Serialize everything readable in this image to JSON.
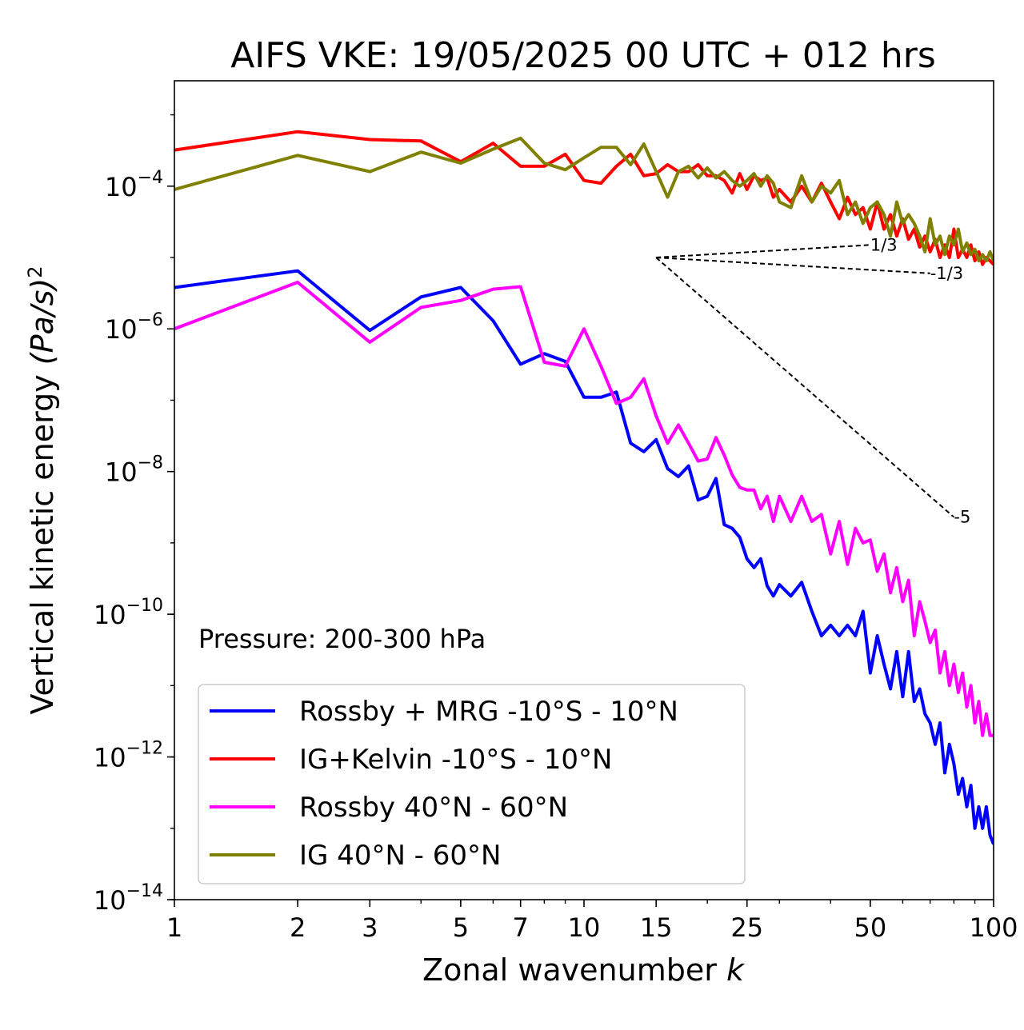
{
  "chart_data": {
    "type": "line",
    "title": "AIFS VKE: 19/05/2025 00 UTC + 012 hrs",
    "xlabel": "Zonal wavenumber",
    "xlabel_var": "k",
    "ylabel": "Vertical kinetic energy",
    "ylabel_unit": "(Pa/s)",
    "ylabel_unit_exp": "2",
    "xscale": "log",
    "yscale": "log",
    "xlim": [
      1,
      100
    ],
    "ylim": [
      1e-14,
      0.003
    ],
    "x_ticks": [
      1,
      2,
      3,
      5,
      7,
      10,
      15,
      25,
      50,
      100
    ],
    "x_tick_labels": [
      "1",
      "2",
      "3",
      "5",
      "7",
      "10",
      "15",
      "25",
      "50",
      "100"
    ],
    "y_ticks": [
      1e-14,
      1e-12,
      1e-10,
      1e-08,
      1e-06,
      0.0001
    ],
    "y_tick_labels": [
      {
        "base": "10",
        "exp": "−14"
      },
      {
        "base": "10",
        "exp": "−12"
      },
      {
        "base": "10",
        "exp": "−10"
      },
      {
        "base": "10",
        "exp": "−8"
      },
      {
        "base": "10",
        "exp": "−6"
      },
      {
        "base": "10",
        "exp": "−4"
      }
    ],
    "annotation": "Pressure: 200-300 hPa",
    "legend_position": "lower-left",
    "series": [
      {
        "name": "Rossby + MRG -10°S - 10°N",
        "color": "#0000ff",
        "x": [
          1,
          2,
          3,
          4,
          5,
          6,
          7,
          8,
          9,
          10,
          11,
          12,
          13,
          14,
          15,
          16,
          17,
          18,
          19,
          20,
          21,
          22,
          23,
          24,
          25,
          26,
          27,
          28,
          29,
          30,
          32,
          34,
          36,
          38,
          40,
          42,
          44,
          46,
          48,
          50,
          52,
          54,
          56,
          58,
          60,
          62,
          64,
          66,
          68,
          70,
          72,
          74,
          76,
          78,
          80,
          82,
          84,
          86,
          88,
          90,
          92,
          94,
          96,
          98,
          100
        ],
        "y": [
          3.8e-06,
          6.5e-06,
          9.5e-07,
          2.8e-06,
          3.8e-06,
          1.3e-06,
          3.2e-07,
          4.5e-07,
          3.5e-07,
          1.1e-07,
          1.1e-07,
          1.3e-07,
          2.5e-08,
          1.9e-08,
          2.8e-08,
          1.1e-08,
          8.5e-09,
          1.2e-08,
          4e-09,
          4.5e-09,
          8e-09,
          1.8e-09,
          1.6e-09,
          1.2e-09,
          6e-10,
          4.5e-10,
          6e-10,
          2.5e-10,
          1.8e-10,
          2.6e-10,
          1.8e-10,
          2.8e-10,
          1.1e-10,
          5e-11,
          7e-11,
          5e-11,
          7e-11,
          5e-11,
          1.1e-10,
          1.5e-11,
          5e-11,
          2e-11,
          9e-12,
          3e-11,
          7e-12,
          3e-11,
          6e-12,
          9e-12,
          4e-12,
          3e-12,
          1.5e-12,
          3e-12,
          6e-13,
          1.5e-12,
          8e-13,
          3e-13,
          5e-13,
          2e-13,
          4e-13,
          1e-13,
          2e-13,
          1e-13,
          2e-13,
          8e-14,
          6e-14
        ]
      },
      {
        "name": "IG+Kelvin -10°S - 10°N",
        "color": "#ff0000",
        "x": [
          1,
          2,
          3,
          4,
          5,
          6,
          7,
          8,
          9,
          10,
          11,
          12,
          13,
          14,
          15,
          16,
          17,
          18,
          19,
          20,
          21,
          22,
          23,
          24,
          25,
          26,
          27,
          28,
          29,
          30,
          32,
          34,
          36,
          38,
          40,
          42,
          44,
          46,
          48,
          50,
          52,
          54,
          56,
          58,
          60,
          62,
          64,
          66,
          68,
          70,
          72,
          74,
          76,
          78,
          80,
          82,
          84,
          86,
          88,
          90,
          92,
          94,
          96,
          98,
          100
        ],
        "y": [
          0.00032,
          0.00058,
          0.00045,
          0.00043,
          0.00022,
          0.0004,
          0.00019,
          0.00019,
          0.00028,
          0.00012,
          0.00011,
          0.00019,
          0.00028,
          0.00014,
          0.00015,
          0.0002,
          0.00016,
          0.00016,
          0.0002,
          0.00014,
          0.00014,
          0.00012,
          8e-05,
          0.00015,
          9e-05,
          0.00014,
          0.00012,
          0.00013,
          7e-05,
          9e-05,
          6e-05,
          0.0001,
          6e-05,
          0.00011,
          6e-05,
          3.5e-05,
          7e-05,
          4e-05,
          5e-05,
          2.5e-05,
          6e-05,
          2.5e-05,
          4e-05,
          2e-05,
          3.5e-05,
          1.8e-05,
          2.5e-05,
          1.4e-05,
          2e-05,
          1.2e-05,
          1.8e-05,
          1e-05,
          1.5e-05,
          1e-05,
          2.5e-05,
          1e-05,
          1.3e-05,
          1e-05,
          1.5e-05,
          9e-06,
          1.2e-05,
          8e-06,
          1e-05,
          9e-06,
          8e-06
        ]
      },
      {
        "name": "Rossby 40°N - 60°N",
        "color": "#ff00ff",
        "x": [
          1,
          2,
          3,
          4,
          5,
          6,
          7,
          8,
          9,
          10,
          11,
          12,
          13,
          14,
          15,
          16,
          17,
          18,
          19,
          20,
          21,
          22,
          23,
          24,
          25,
          26,
          27,
          28,
          29,
          30,
          32,
          34,
          36,
          38,
          40,
          42,
          44,
          46,
          48,
          50,
          52,
          54,
          56,
          58,
          60,
          62,
          64,
          66,
          68,
          70,
          72,
          74,
          76,
          78,
          80,
          82,
          84,
          86,
          88,
          90,
          92,
          94,
          96,
          98,
          100
        ],
        "y": [
          1e-06,
          4.5e-06,
          6.5e-07,
          2e-06,
          2.5e-06,
          3.6e-06,
          3.9e-06,
          3.4e-07,
          3e-07,
          1e-06,
          3e-07,
          9e-08,
          1.1e-07,
          2e-07,
          6e-08,
          2.5e-08,
          4.5e-08,
          2.5e-08,
          1.4e-08,
          1.5e-08,
          3e-08,
          1.7e-08,
          9e-09,
          6e-09,
          5.5e-09,
          5.5e-09,
          3e-09,
          4.5e-09,
          2e-09,
          4.5e-09,
          2e-09,
          4.5e-09,
          2e-09,
          2.5e-09,
          7e-10,
          2e-09,
          5e-10,
          1.6e-09,
          1e-09,
          1.1e-09,
          4e-10,
          7e-10,
          2e-10,
          4.5e-10,
          1.5e-10,
          3e-10,
          5e-11,
          1.5e-10,
          8e-11,
          4e-11,
          6e-11,
          1.5e-11,
          3e-11,
          1e-11,
          2e-11,
          8e-12,
          1.5e-11,
          5e-12,
          1e-11,
          3e-12,
          6e-12,
          2e-12,
          4e-12,
          2e-12,
          2e-12
        ]
      },
      {
        "name": "IG 40°N - 60°N",
        "color": "#808000",
        "x": [
          1,
          2,
          3,
          4,
          5,
          6,
          7,
          8,
          9,
          10,
          11,
          12,
          13,
          14,
          15,
          16,
          17,
          18,
          19,
          20,
          21,
          22,
          23,
          24,
          25,
          26,
          27,
          28,
          29,
          30,
          32,
          34,
          36,
          38,
          40,
          42,
          44,
          46,
          48,
          50,
          52,
          54,
          56,
          58,
          60,
          62,
          64,
          66,
          68,
          70,
          72,
          74,
          76,
          78,
          80,
          82,
          84,
          86,
          88,
          90,
          92,
          94,
          96,
          98,
          100
        ],
        "y": [
          9e-05,
          0.00027,
          0.00016,
          0.0003,
          0.00021,
          0.00033,
          0.00047,
          0.00021,
          0.00017,
          0.00025,
          0.00035,
          0.00035,
          0.0002,
          0.00039,
          0.00016,
          7e-05,
          0.00016,
          0.00019,
          0.00013,
          0.00018,
          0.00013,
          0.00016,
          0.00012,
          0.0001,
          0.00012,
          0.00015,
          0.0001,
          0.00014,
          0.00011,
          6e-05,
          5e-05,
          0.00014,
          6e-05,
          0.0001,
          8e-05,
          0.00012,
          4e-05,
          6e-05,
          3e-05,
          5e-05,
          6e-05,
          4e-05,
          2e-05,
          6e-05,
          3e-05,
          4e-05,
          3e-05,
          2e-05,
          1.2e-05,
          3.5e-05,
          1.5e-05,
          2e-05,
          1.1e-05,
          2e-05,
          1.5e-05,
          2.5e-05,
          1.2e-05,
          1.6e-05,
          1.1e-05,
          1.3e-05,
          9e-06,
          1.1e-05,
          9e-06,
          1.2e-05,
          9e-06
        ]
      }
    ],
    "reference_lines": [
      {
        "label": "1/3",
        "from": [
          15,
          1e-05
        ],
        "to": [
          50,
          1.5e-05
        ]
      },
      {
        "label": "-1/3",
        "from": [
          15,
          1e-05
        ],
        "to": [
          70,
          6e-06
        ]
      },
      {
        "label": "-5",
        "from": [
          15,
          1e-05
        ],
        "to": [
          80,
          2.3e-09
        ]
      }
    ]
  }
}
